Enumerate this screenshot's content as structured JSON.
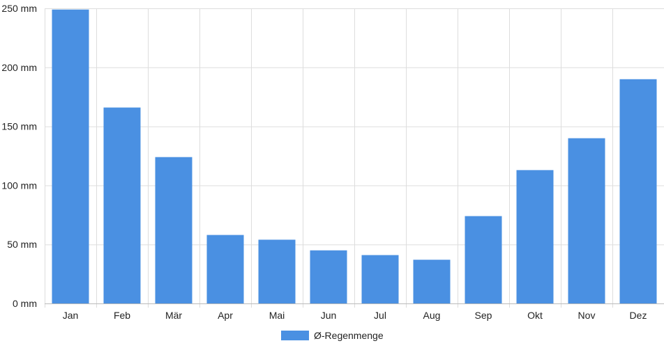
{
  "chart_data": {
    "type": "bar",
    "categories": [
      "Jan",
      "Feb",
      "Mär",
      "Apr",
      "Mai",
      "Jun",
      "Jul",
      "Aug",
      "Sep",
      "Okt",
      "Nov",
      "Dez"
    ],
    "series": [
      {
        "name": "Ø-Regenmenge",
        "color": "#4a90e2",
        "values": [
          249,
          166,
          124,
          58,
          54,
          45,
          41,
          37,
          74,
          113,
          140,
          190
        ]
      }
    ],
    "y_ticks": [
      "0 mm",
      "50 mm",
      "100 mm",
      "150 mm",
      "200 mm",
      "250 mm"
    ],
    "y_tick_values": [
      0,
      50,
      100,
      150,
      200,
      250
    ],
    "ylim": [
      0,
      250
    ],
    "grid": true,
    "legend_position": "bottom-center"
  }
}
